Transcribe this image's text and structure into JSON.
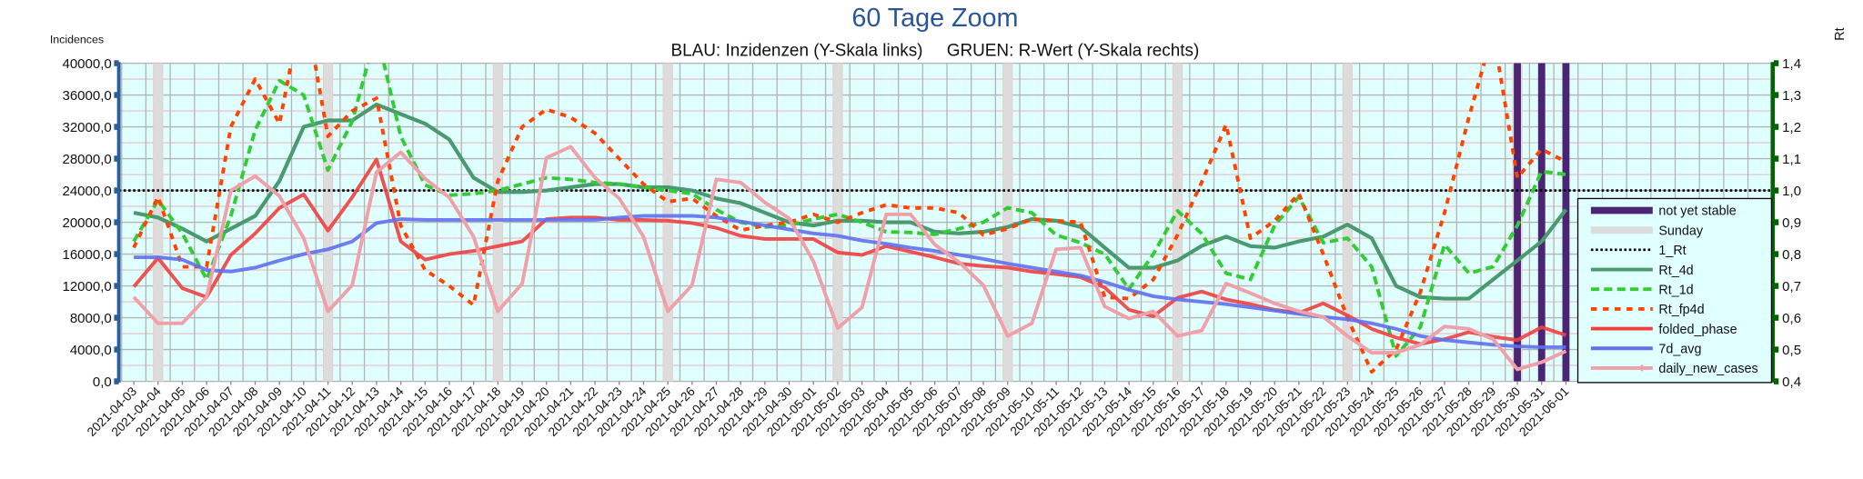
{
  "chart_data": {
    "type": "line",
    "title": "60 Tage Zoom",
    "subtitle": "BLAU: Inzidenzen (Y-Skala links)     GRUEN: R-Wert (Y-Skala rechts)",
    "ylabel_left": "Incidences",
    "ylabel_right": "Rt",
    "ylim_left": [
      0,
      40000
    ],
    "ylim_right": [
      0.4,
      1.4
    ],
    "yticks_left": [
      "0,0",
      "4000,0",
      "8000,0",
      "12000,0",
      "16000,0",
      "20000,0",
      "24000,0",
      "28000,0",
      "32000,0",
      "36000,0",
      "40000,0"
    ],
    "yticks_right": [
      "0,4",
      "0,5",
      "0,6",
      "0,7",
      "0,8",
      "0,9",
      "1,0",
      "1,1",
      "1,2",
      "1,3",
      "1,4"
    ],
    "grid": true,
    "legend_position": "bottom-right",
    "colors": {
      "title": "#2a5599",
      "plot_bg": "#e0ffff",
      "left_axis": "#2a5f9e",
      "right_axis": "#006400",
      "not_yet_stable": "#4b2574",
      "sunday": "#dcdcdc"
    },
    "x": [
      "2021-04-03",
      "2021-04-04",
      "2021-04-05",
      "2021-04-06",
      "2021-04-07",
      "2021-04-08",
      "2021-04-09",
      "2021-04-10",
      "2021-04-11",
      "2021-04-12",
      "2021-04-13",
      "2021-04-14",
      "2021-04-15",
      "2021-04-16",
      "2021-04-17",
      "2021-04-18",
      "2021-04-19",
      "2021-04-20",
      "2021-04-21",
      "2021-04-22",
      "2021-04-23",
      "2021-04-24",
      "2021-04-25",
      "2021-04-26",
      "2021-04-27",
      "2021-04-28",
      "2021-04-29",
      "2021-04-30",
      "2021-05-01",
      "2021-05-02",
      "2021-05-03",
      "2021-05-04",
      "2021-05-05",
      "2021-05-06",
      "2021-05-07",
      "2021-05-08",
      "2021-05-09",
      "2021-05-10",
      "2021-05-11",
      "2021-05-12",
      "2021-05-13",
      "2021-05-14",
      "2021-05-15",
      "2021-05-16",
      "2021-05-17",
      "2021-05-18",
      "2021-05-19",
      "2021-05-20",
      "2021-05-21",
      "2021-05-22",
      "2021-05-23",
      "2021-05-24",
      "2021-05-25",
      "2021-05-26",
      "2021-05-27",
      "2021-05-28",
      "2021-05-29",
      "2021-05-30",
      "2021-05-31",
      "2021-06-01"
    ],
    "sundays": [
      "2021-04-04",
      "2021-04-11",
      "2021-04-18",
      "2021-04-25",
      "2021-05-02",
      "2021-05-09",
      "2021-05-16",
      "2021-05-23",
      "2021-05-30"
    ],
    "not_yet_stable": [
      "2021-05-30",
      "2021-05-31",
      "2021-06-01"
    ],
    "reference_line": {
      "name": "1_Rt",
      "axis": "right",
      "value": 1.0
    },
    "series": [
      {
        "name": "Rt_4d",
        "axis": "right",
        "color": "#4a9a70",
        "style": "solid",
        "values": [
          0.93,
          0.915,
          0.88,
          0.84,
          0.88,
          0.92,
          1.03,
          1.2,
          1.22,
          1.22,
          1.27,
          1.24,
          1.21,
          1.16,
          1.04,
          0.995,
          0.995,
          1.0,
          1.01,
          1.02,
          1.02,
          1.01,
          1.01,
          1.0,
          0.975,
          0.96,
          0.93,
          0.9,
          0.89,
          0.905,
          0.905,
          0.9,
          0.9,
          0.87,
          0.865,
          0.87,
          0.885,
          0.91,
          0.905,
          0.885,
          0.82,
          0.757,
          0.757,
          0.78,
          0.826,
          0.855,
          0.825,
          0.82,
          0.84,
          0.855,
          0.893,
          0.85,
          0.7,
          0.665,
          0.66,
          0.66,
          0.72,
          0.78,
          0.84,
          0.94
        ]
      },
      {
        "name": "Rt_1d",
        "axis": "right",
        "color": "#33cc33",
        "style": "dashed",
        "values": [
          0.84,
          0.97,
          0.865,
          0.72,
          0.92,
          1.19,
          1.345,
          1.3,
          1.064,
          1.217,
          1.5,
          1.17,
          1.017,
          0.985,
          0.99,
          1.0,
          1.02,
          1.04,
          1.035,
          1.025,
          1.02,
          1.01,
          1.0,
          0.99,
          0.94,
          0.9,
          0.885,
          0.89,
          0.91,
          0.925,
          0.9,
          0.87,
          0.868,
          0.862,
          0.88,
          0.9,
          0.946,
          0.93,
          0.86,
          0.836,
          0.8,
          0.69,
          0.8,
          0.936,
          0.864,
          0.74,
          0.72,
          0.89,
          0.98,
          0.836,
          0.85,
          0.76,
          0.48,
          0.57,
          0.83,
          0.74,
          0.76,
          0.89,
          1.06,
          1.05
        ]
      },
      {
        "name": "Rt_fp4d",
        "axis": "right",
        "color": "#ff4400",
        "style": "dotted",
        "values": [
          0.82,
          0.98,
          0.76,
          0.76,
          1.2,
          1.35,
          1.21,
          1.6,
          1.17,
          1.25,
          1.29,
          0.89,
          0.75,
          0.7,
          0.64,
          1.03,
          1.2,
          1.255,
          1.23,
          1.18,
          1.1,
          1.02,
          0.965,
          0.975,
          0.92,
          0.875,
          0.89,
          0.9,
          0.925,
          0.9,
          0.93,
          0.955,
          0.945,
          0.945,
          0.93,
          0.86,
          0.88,
          0.91,
          0.905,
          0.9,
          0.665,
          0.66,
          0.72,
          0.86,
          1.027,
          1.207,
          0.85,
          0.905,
          0.99,
          0.8,
          0.6,
          0.43,
          0.5,
          0.68,
          0.93,
          1.23,
          1.5,
          1.04,
          1.13,
          1.09
        ]
      },
      {
        "name": "folded_phase",
        "axis": "left",
        "color": "#f04040",
        "style": "solid",
        "values": [
          11900,
          15500,
          11700,
          10600,
          15900,
          18600,
          21800,
          23500,
          18950,
          23150,
          27900,
          17600,
          15300,
          16000,
          16400,
          17000,
          17600,
          20400,
          20600,
          20600,
          20300,
          20300,
          20200,
          19900,
          19300,
          18300,
          17900,
          17900,
          17900,
          16200,
          15900,
          17000,
          16300,
          15600,
          14800,
          14500,
          14300,
          13800,
          13500,
          13100,
          11800,
          9000,
          8200,
          10500,
          11300,
          10300,
          9700,
          9000,
          8600,
          9800,
          8300,
          6600,
          5500,
          4700,
          5300,
          6200,
          5600,
          5200,
          6800,
          5800
        ]
      },
      {
        "name": "7d_avg",
        "axis": "left",
        "color": "#6070f0",
        "style": "solid",
        "values": [
          15600,
          15600,
          15300,
          14000,
          13800,
          14300,
          15200,
          16000,
          16600,
          17600,
          19900,
          20400,
          20300,
          20300,
          20300,
          20300,
          20300,
          20300,
          20300,
          20300,
          20600,
          20800,
          20800,
          20800,
          20600,
          20100,
          19600,
          19100,
          18600,
          18300,
          17700,
          17300,
          16800,
          16400,
          15900,
          15400,
          14800,
          14300,
          13800,
          13300,
          12500,
          11500,
          10700,
          10300,
          10000,
          9700,
          9300,
          8900,
          8500,
          8100,
          7800,
          7300,
          6600,
          5700,
          5200,
          4900,
          4600,
          4400,
          4300,
          4300
        ]
      },
      {
        "name": "daily_new_cases",
        "axis": "left",
        "color": "#f0a0a8",
        "style": "solid",
        "values": [
          10600,
          7300,
          7300,
          10600,
          24000,
          25800,
          23300,
          18000,
          8800,
          12100,
          26300,
          28800,
          25500,
          23100,
          18200,
          8800,
          12300,
          28100,
          29500,
          25600,
          23000,
          18200,
          8800,
          12100,
          25400,
          25000,
          22500,
          20500,
          15100,
          6700,
          9300,
          21000,
          21000,
          17200,
          15000,
          12100,
          5700,
          7300,
          16600,
          16800,
          9400,
          7900,
          8800,
          5700,
          6400,
          12300,
          11100,
          9800,
          8800,
          8100,
          5700,
          3600,
          3600,
          4600,
          6900,
          6600,
          5300,
          1500,
          2400,
          3800
        ]
      }
    ],
    "legend": [
      "not yet stable",
      "Sunday",
      "1_Rt",
      "Rt_4d",
      "Rt_1d",
      "Rt_fp4d",
      "folded_phase",
      "7d_avg",
      "daily_new_cases"
    ]
  }
}
